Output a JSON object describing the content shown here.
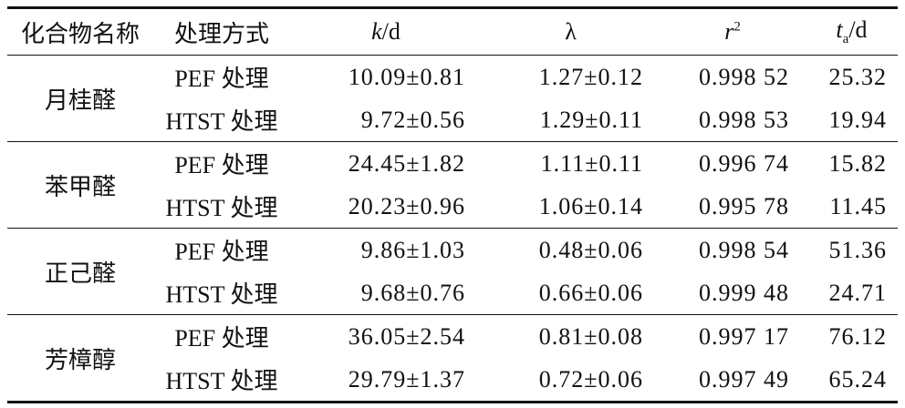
{
  "table": {
    "header": [
      [
        "化合物名称"
      ],
      [
        "处理方式"
      ],
      [
        "k",
        "/d"
      ],
      [
        "λ"
      ],
      [
        "r",
        "2"
      ],
      [
        "t",
        "a",
        "/d"
      ]
    ],
    "groups": [
      {
        "compound": "月桂醛",
        "rows": [
          [
            "PEF 处理",
            "10.09±0.81",
            "1.27±0.12",
            "0.998 52",
            "25.32"
          ],
          [
            "HTST 处理",
            "9.72±0.56",
            "1.29±0.11",
            "0.998 53",
            "19.94"
          ]
        ]
      },
      {
        "compound": "苯甲醛",
        "rows": [
          [
            "PEF 处理",
            "24.45±1.82",
            "1.11±0.11",
            "0.996 74",
            "15.82"
          ],
          [
            "HTST 处理",
            "20.23±0.96",
            "1.06±0.14",
            "0.995 78",
            "11.45"
          ]
        ]
      },
      {
        "compound": "正己醛",
        "rows": [
          [
            "PEF 处理",
            "9.86±1.03",
            "0.48±0.06",
            "0.998 54",
            "51.36"
          ],
          [
            "HTST 处理",
            "9.68±0.76",
            "0.66±0.06",
            "0.999 48",
            "24.71"
          ]
        ]
      },
      {
        "compound": "芳樟醇",
        "rows": [
          [
            "PEF 处理",
            "36.05±2.54",
            "0.81±0.08",
            "0.997 17",
            "76.12"
          ],
          [
            "HTST 处理",
            "29.79±1.37",
            "0.72±0.06",
            "0.997 49",
            "65.24"
          ]
        ]
      }
    ]
  }
}
